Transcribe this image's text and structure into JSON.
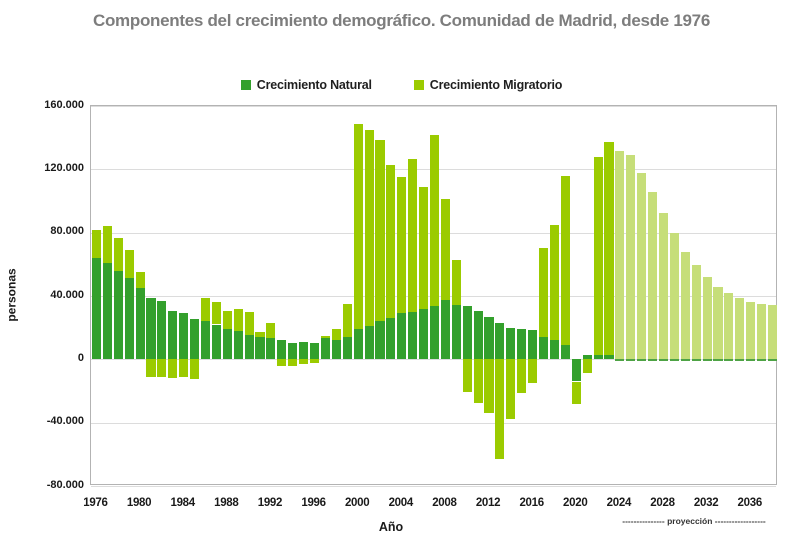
{
  "title": "Componentes del crecimiento demográfico. Comunidad de Madrid, desde 1976",
  "legend": [
    {
      "label": "Crecimiento Natural",
      "color": "#33a02c"
    },
    {
      "label": "Crecimiento Migratorio",
      "color": "#9bcb00"
    }
  ],
  "axes": {
    "y_label": "personas",
    "x_label": "Año",
    "y_ticks": [
      "160.000",
      "120.000",
      "80.000",
      "40.000",
      "0",
      "-40.000",
      "-80.000"
    ],
    "x_ticks": [
      1976,
      1980,
      1984,
      1988,
      1992,
      1996,
      2000,
      2004,
      2008,
      2012,
      2016,
      2020,
      2024,
      2028,
      2032,
      2036
    ]
  },
  "projection_note": "--------------- proyección ------------------",
  "colors": {
    "natural": "#33a02c",
    "migratorio": "#9bcb00",
    "natural_projection": "#4ea345",
    "migratorio_projection": "#c6de79",
    "grid": "#dcdcdc",
    "title": "#7d7d7d"
  },
  "chart_data": {
    "type": "bar",
    "stacked": true,
    "title": "Componentes del crecimiento demográfico. Comunidad de Madrid, desde 1976",
    "xlabel": "Año",
    "ylabel": "personas",
    "ylim": [
      -80000,
      160000
    ],
    "grid": true,
    "legend_position": "top",
    "projection_from": 2024,
    "x": [
      1976,
      1977,
      1978,
      1979,
      1980,
      1981,
      1982,
      1983,
      1984,
      1985,
      1986,
      1987,
      1988,
      1989,
      1990,
      1991,
      1992,
      1993,
      1994,
      1995,
      1996,
      1997,
      1998,
      1999,
      2000,
      2001,
      2002,
      2003,
      2004,
      2005,
      2006,
      2007,
      2008,
      2009,
      2010,
      2011,
      2012,
      2013,
      2014,
      2015,
      2016,
      2017,
      2018,
      2019,
      2020,
      2021,
      2022,
      2023,
      2024,
      2025,
      2026,
      2027,
      2028,
      2029,
      2030,
      2031,
      2032,
      2033,
      2034,
      2035,
      2036,
      2037,
      2038
    ],
    "series": [
      {
        "name": "Crecimiento Natural",
        "values": [
          64000,
          61000,
          56000,
          51500,
          45000,
          38500,
          37000,
          30500,
          29500,
          25500,
          24000,
          22000,
          19000,
          18000,
          15500,
          14000,
          13500,
          12000,
          10500,
          11000,
          10500,
          13500,
          12000,
          14000,
          19000,
          21000,
          24000,
          26000,
          29000,
          30000,
          32000,
          33500,
          37500,
          34500,
          33500,
          30500,
          26500,
          23000,
          20000,
          19000,
          18500,
          14000,
          12000,
          9000,
          -14000,
          2500,
          3000,
          3000,
          -1000,
          -1000,
          -1000,
          -1000,
          -1000,
          -1000,
          -1000,
          -1000,
          -1000,
          -1000,
          -1000,
          -1000,
          -1000,
          -1000,
          -1000
        ]
      },
      {
        "name": "Crecimiento Migratorio",
        "values": [
          18000,
          23500,
          20500,
          17500,
          10000,
          -11000,
          -11000,
          -11500,
          -11000,
          -12500,
          14500,
          14000,
          11500,
          14000,
          14500,
          3000,
          9500,
          -4000,
          -4000,
          -3000,
          -2500,
          1500,
          7000,
          21000,
          129500,
          124000,
          114500,
          97000,
          86000,
          96500,
          77000,
          108500,
          63500,
          28500,
          -20500,
          -27500,
          -34000,
          -63000,
          -38000,
          -21000,
          -15000,
          56500,
          73000,
          107000,
          -14000,
          -8500,
          125000,
          134000,
          131500,
          129000,
          118000,
          105500,
          92500,
          79500,
          67500,
          59500,
          52000,
          46000,
          42000,
          38500,
          36500,
          35000,
          34500
        ]
      }
    ]
  }
}
